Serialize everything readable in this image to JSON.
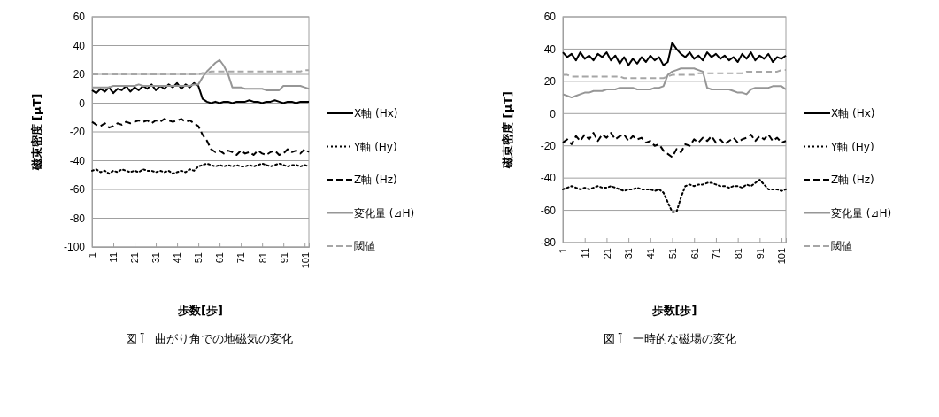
{
  "chart_data": [
    {
      "type": "line",
      "xlabel": "歩数[歩]",
      "ylabel": "磁束密度 [µT]",
      "annotations": [
        "図 Ï　曲がり角での地磁気の変化"
      ],
      "x": [
        1,
        3,
        5,
        7,
        9,
        11,
        13,
        15,
        17,
        19,
        21,
        23,
        25,
        27,
        29,
        31,
        33,
        35,
        37,
        39,
        41,
        43,
        45,
        47,
        49,
        51,
        53,
        55,
        57,
        59,
        61,
        63,
        65,
        67,
        69,
        71,
        73,
        75,
        77,
        79,
        81,
        83,
        85,
        87,
        89,
        91,
        93,
        95,
        97,
        99,
        101,
        103
      ],
      "xlim": [
        1,
        103
      ],
      "xticks": [
        1,
        11,
        21,
        31,
        41,
        51,
        61,
        71,
        81,
        91,
        101
      ],
      "ylim": [
        -100,
        60
      ],
      "yticks": [
        -100,
        -80,
        -60,
        -40,
        -20,
        0,
        20,
        40,
        60
      ],
      "grid": "y",
      "legend": "right",
      "series": [
        {
          "name": "X軸 (Hx)",
          "color": "#000000",
          "line_style": "solid",
          "values": [
            9,
            7,
            10,
            8,
            11,
            7,
            10,
            9,
            12,
            8,
            11,
            9,
            12,
            10,
            13,
            9,
            12,
            10,
            13,
            11,
            14,
            10,
            13,
            11,
            14,
            12,
            3,
            1,
            0,
            1,
            0,
            1,
            1,
            0,
            1,
            1,
            1,
            2,
            1,
            1,
            0,
            1,
            1,
            2,
            1,
            0,
            1,
            1,
            0,
            1,
            1,
            1
          ]
        },
        {
          "name": "Y軸 (Hy)",
          "color": "#000000",
          "line_style": "dotted",
          "values": [
            -47,
            -46,
            -48,
            -47,
            -49,
            -47,
            -48,
            -46,
            -47,
            -48,
            -47,
            -48,
            -46,
            -47,
            -47,
            -48,
            -47,
            -48,
            -47,
            -49,
            -48,
            -47,
            -48,
            -46,
            -47,
            -44,
            -43,
            -42,
            -43,
            -44,
            -43,
            -44,
            -43,
            -44,
            -43,
            -44,
            -44,
            -43,
            -44,
            -43,
            -42,
            -43,
            -44,
            -43,
            -42,
            -43,
            -44,
            -43,
            -43,
            -44,
            -43,
            -44
          ]
        },
        {
          "name": "Z軸 (Hz)",
          "color": "#000000",
          "line_style": "dashed",
          "values": [
            -13,
            -15,
            -16,
            -14,
            -17,
            -16,
            -14,
            -15,
            -13,
            -14,
            -13,
            -12,
            -13,
            -12,
            -14,
            -12,
            -13,
            -11,
            -12,
            -13,
            -12,
            -11,
            -13,
            -12,
            -14,
            -16,
            -22,
            -26,
            -32,
            -34,
            -33,
            -35,
            -33,
            -34,
            -36,
            -33,
            -35,
            -34,
            -36,
            -33,
            -35,
            -36,
            -34,
            -33,
            -36,
            -35,
            -32,
            -34,
            -33,
            -35,
            -32,
            -34
          ]
        },
        {
          "name": "変化量 (⊿H)",
          "color": "#969696",
          "line_style": "solid",
          "values": [
            11,
            11,
            11,
            11,
            11,
            12,
            12,
            12,
            12,
            12,
            12,
            13,
            12,
            12,
            12,
            12,
            12,
            12,
            12,
            12,
            12,
            12,
            12,
            12,
            13,
            13,
            18,
            22,
            25,
            28,
            30,
            26,
            20,
            11,
            11,
            11,
            10,
            10,
            10,
            10,
            10,
            9,
            9,
            9,
            9,
            12,
            12,
            12,
            12,
            12,
            11,
            10
          ]
        },
        {
          "name": "閾値",
          "color": "#a6a6a6",
          "line_style": "dashed",
          "values": [
            20,
            20,
            20,
            20,
            20,
            20,
            20,
            20,
            20,
            20,
            20,
            20,
            20,
            20,
            20,
            20,
            20,
            20,
            20,
            20,
            20,
            20,
            20,
            20,
            20,
            20,
            21,
            21,
            22,
            22,
            22,
            22,
            22,
            22,
            22,
            22,
            22,
            22,
            22,
            22,
            22,
            22,
            22,
            22,
            22,
            22,
            22,
            22,
            22,
            22,
            23,
            23
          ]
        }
      ]
    },
    {
      "type": "line",
      "xlabel": "歩数[歩]",
      "ylabel": "磁束密度 [µT]",
      "annotations": [
        "図 Ï　一時的な磁場の変化"
      ],
      "x": [
        1,
        3,
        5,
        7,
        9,
        11,
        13,
        15,
        17,
        19,
        21,
        23,
        25,
        27,
        29,
        31,
        33,
        35,
        37,
        39,
        41,
        43,
        45,
        47,
        49,
        51,
        53,
        55,
        57,
        59,
        61,
        63,
        65,
        67,
        69,
        71,
        73,
        75,
        77,
        79,
        81,
        83,
        85,
        87,
        89,
        91,
        93,
        95,
        97,
        99,
        101,
        103
      ],
      "xlim": [
        1,
        103
      ],
      "xticks": [
        1,
        11,
        21,
        31,
        41,
        51,
        61,
        71,
        81,
        91,
        101
      ],
      "ylim": [
        -80,
        60
      ],
      "yticks": [
        -80,
        -60,
        -40,
        -20,
        0,
        20,
        40,
        60
      ],
      "grid": "y",
      "legend": "right",
      "series": [
        {
          "name": "X軸 (Hx)",
          "color": "#000000",
          "line_style": "solid",
          "values": [
            38,
            35,
            37,
            33,
            38,
            34,
            36,
            33,
            37,
            35,
            38,
            33,
            36,
            31,
            35,
            30,
            34,
            31,
            35,
            32,
            36,
            33,
            35,
            30,
            32,
            44,
            40,
            37,
            35,
            38,
            34,
            36,
            33,
            38,
            35,
            37,
            34,
            36,
            33,
            35,
            32,
            37,
            34,
            38,
            33,
            36,
            34,
            37,
            32,
            35,
            34,
            36
          ]
        },
        {
          "name": "Y軸 (Hy)",
          "color": "#000000",
          "line_style": "dotted",
          "values": [
            -47,
            -46,
            -45,
            -46,
            -47,
            -46,
            -47,
            -46,
            -45,
            -46,
            -46,
            -45,
            -46,
            -47,
            -48,
            -47,
            -47,
            -46,
            -47,
            -47,
            -47,
            -48,
            -47,
            -49,
            -55,
            -61,
            -61,
            -52,
            -45,
            -44,
            -45,
            -44,
            -44,
            -43,
            -43,
            -44,
            -45,
            -45,
            -46,
            -45,
            -45,
            -46,
            -44,
            -45,
            -43,
            -41,
            -44,
            -47,
            -47,
            -47,
            -48,
            -47
          ]
        },
        {
          "name": "Z軸 (Hz)",
          "color": "#000000",
          "line_style": "dashed",
          "values": [
            -18,
            -16,
            -19,
            -14,
            -17,
            -13,
            -16,
            -12,
            -17,
            -13,
            -15,
            -12,
            -16,
            -14,
            -13,
            -17,
            -14,
            -16,
            -15,
            -18,
            -17,
            -20,
            -19,
            -23,
            -25,
            -27,
            -22,
            -24,
            -19,
            -20,
            -16,
            -18,
            -15,
            -17,
            -14,
            -18,
            -16,
            -19,
            -17,
            -15,
            -18,
            -16,
            -15,
            -13,
            -17,
            -14,
            -16,
            -13,
            -17,
            -15,
            -18,
            -17
          ]
        },
        {
          "name": "変化量 (⊿H)",
          "color": "#969696",
          "line_style": "solid",
          "values": [
            12,
            11,
            10,
            11,
            12,
            13,
            13,
            14,
            14,
            14,
            15,
            15,
            15,
            16,
            16,
            16,
            16,
            15,
            15,
            15,
            15,
            16,
            16,
            17,
            24,
            26,
            27,
            28,
            28,
            28,
            28,
            27,
            26,
            16,
            15,
            15,
            15,
            15,
            15,
            14,
            13,
            13,
            12,
            15,
            16,
            16,
            16,
            16,
            17,
            17,
            17,
            15
          ]
        },
        {
          "name": "閾値",
          "color": "#a6a6a6",
          "line_style": "dashed",
          "values": [
            24,
            24,
            23,
            23,
            23,
            23,
            23,
            23,
            23,
            23,
            23,
            23,
            23,
            23,
            22,
            22,
            22,
            22,
            22,
            22,
            22,
            22,
            22,
            22,
            23,
            24,
            24,
            24,
            24,
            24,
            24,
            25,
            25,
            25,
            25,
            25,
            25,
            25,
            25,
            25,
            25,
            25,
            26,
            26,
            26,
            26,
            26,
            26,
            26,
            26,
            27,
            27
          ]
        }
      ]
    }
  ]
}
